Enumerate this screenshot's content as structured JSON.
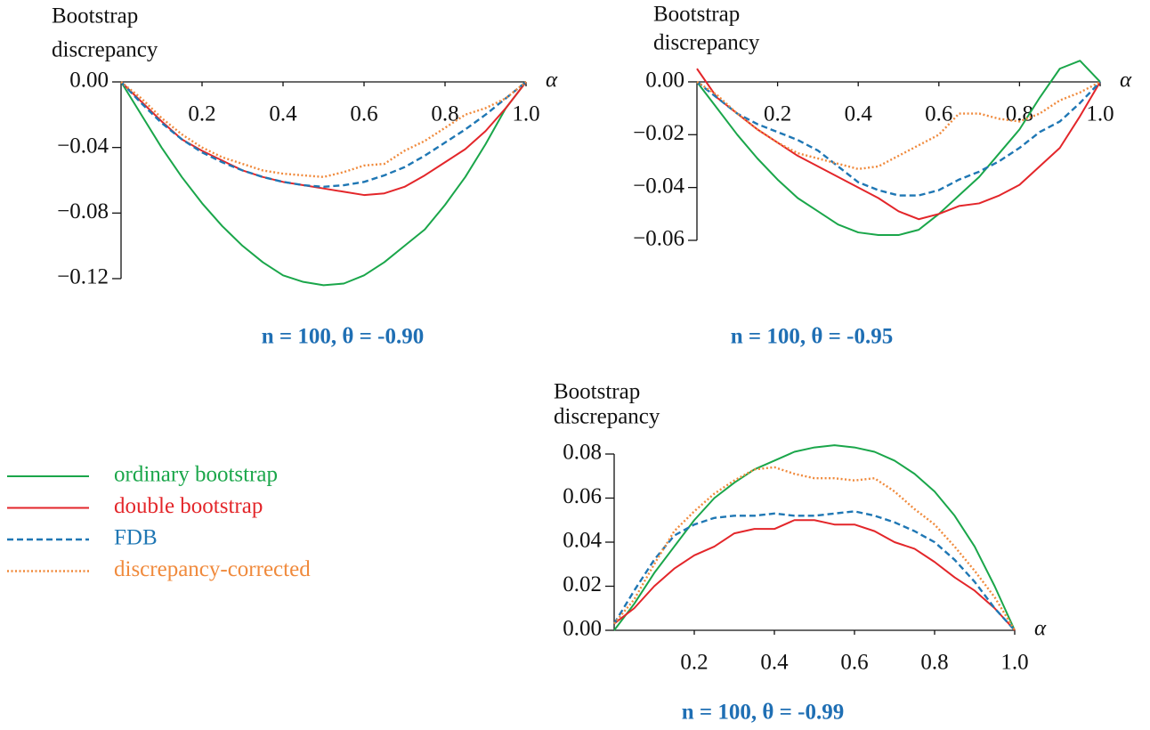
{
  "chart_data": [
    {
      "type": "line",
      "title": "n =  100, θ =  -0.90",
      "ylabel": [
        "Bootstrap",
        "discrepancy"
      ],
      "xlabel": "α",
      "x": [
        0,
        0.05,
        0.1,
        0.15,
        0.2,
        0.25,
        0.3,
        0.35,
        0.4,
        0.45,
        0.5,
        0.55,
        0.6,
        0.65,
        0.7,
        0.75,
        0.8,
        0.85,
        0.9,
        0.95,
        1
      ],
      "xlim": [
        0,
        1
      ],
      "ylim": [
        -0.13,
        0.005
      ],
      "xticks": [
        0.2,
        0.4,
        0.6,
        0.8,
        {
          "value": 1,
          "label": "1.0"
        }
      ],
      "yticks": [
        {
          "value": 0,
          "label": "0.00"
        },
        {
          "value": -0.04,
          "label": "−0.04"
        },
        {
          "value": -0.08,
          "label": "−0.08"
        },
        {
          "value": -0.12,
          "label": "−0.12"
        }
      ],
      "series": [
        {
          "name": "ordinary bootstrap",
          "color": "#1aa64a",
          "dash": "solid",
          "values": [
            0,
            -0.02,
            -0.04,
            -0.058,
            -0.074,
            -0.088,
            -0.1,
            -0.11,
            -0.118,
            -0.122,
            -0.124,
            -0.123,
            -0.118,
            -0.11,
            -0.1,
            -0.09,
            -0.075,
            -0.058,
            -0.038,
            -0.016,
            0
          ]
        },
        {
          "name": "double bootstrap",
          "color": "#e3262a",
          "dash": "solid",
          "values": [
            0,
            -0.012,
            -0.024,
            -0.035,
            -0.042,
            -0.048,
            -0.054,
            -0.058,
            -0.061,
            -0.063,
            -0.065,
            -0.067,
            -0.069,
            -0.068,
            -0.064,
            -0.057,
            -0.049,
            -0.041,
            -0.03,
            -0.016,
            0
          ]
        },
        {
          "name": "FDB",
          "color": "#1f77b4",
          "dash": "dashed",
          "values": [
            0,
            -0.013,
            -0.025,
            -0.035,
            -0.043,
            -0.049,
            -0.054,
            -0.058,
            -0.061,
            -0.063,
            -0.064,
            -0.063,
            -0.061,
            -0.057,
            -0.052,
            -0.045,
            -0.037,
            -0.029,
            -0.02,
            -0.01,
            0
          ]
        },
        {
          "name": "discrepancy-corrected",
          "color": "#f08a3c",
          "dash": "dotted",
          "values": [
            0,
            -0.01,
            -0.022,
            -0.032,
            -0.04,
            -0.046,
            -0.05,
            -0.054,
            -0.056,
            -0.057,
            -0.058,
            -0.055,
            -0.051,
            -0.05,
            -0.042,
            -0.036,
            -0.028,
            -0.02,
            -0.016,
            -0.01,
            0
          ]
        }
      ]
    },
    {
      "type": "line",
      "title": "n =  100, θ =  -0.95",
      "ylabel": [
        "Bootstrap",
        "discrepancy"
      ],
      "xlabel": "α",
      "x": [
        0,
        0.05,
        0.1,
        0.15,
        0.2,
        0.25,
        0.3,
        0.35,
        0.4,
        0.45,
        0.5,
        0.55,
        0.6,
        0.65,
        0.7,
        0.75,
        0.8,
        0.85,
        0.9,
        0.95,
        1
      ],
      "xlim": [
        0,
        1
      ],
      "ylim": [
        -0.062,
        0.01
      ],
      "xticks": [
        0.2,
        0.4,
        0.6,
        0.8,
        {
          "value": 1,
          "label": "1.0"
        }
      ],
      "yticks": [
        {
          "value": 0,
          "label": "0.00"
        },
        {
          "value": -0.02,
          "label": "−0.02"
        },
        {
          "value": -0.04,
          "label": "−0.04"
        },
        {
          "value": -0.06,
          "label": "−0.06"
        }
      ],
      "series": [
        {
          "color": "#1aa64a",
          "dash": "solid",
          "values": [
            0,
            -0.01,
            -0.02,
            -0.029,
            -0.037,
            -0.044,
            -0.049,
            -0.054,
            -0.057,
            -0.058,
            -0.058,
            -0.056,
            -0.05,
            -0.043,
            -0.036,
            -0.027,
            -0.018,
            -0.006,
            0.005,
            0.008,
            0
          ]
        },
        {
          "color": "#e3262a",
          "dash": "solid",
          "values": [
            0.005,
            -0.006,
            -0.012,
            -0.018,
            -0.023,
            -0.028,
            -0.032,
            -0.036,
            -0.04,
            -0.044,
            -0.049,
            -0.052,
            -0.05,
            -0.047,
            -0.046,
            -0.043,
            -0.039,
            -0.032,
            -0.025,
            -0.013,
            0
          ]
        },
        {
          "color": "#1f77b4",
          "dash": "dashed",
          "values": [
            0,
            -0.006,
            -0.012,
            -0.016,
            -0.019,
            -0.022,
            -0.026,
            -0.032,
            -0.038,
            -0.041,
            -0.043,
            -0.043,
            -0.041,
            -0.037,
            -0.034,
            -0.03,
            -0.025,
            -0.019,
            -0.015,
            -0.008,
            0
          ]
        },
        {
          "color": "#f08a3c",
          "dash": "dotted",
          "values": [
            0,
            -0.005,
            -0.012,
            -0.018,
            -0.023,
            -0.027,
            -0.029,
            -0.031,
            -0.033,
            -0.032,
            -0.028,
            -0.024,
            -0.02,
            -0.012,
            -0.012,
            -0.014,
            -0.015,
            -0.012,
            -0.007,
            -0.004,
            0
          ]
        }
      ]
    },
    {
      "type": "line",
      "title": "n =  100, θ =  -0.99",
      "ylabel": [
        "Bootstrap",
        "discrepancy"
      ],
      "xlabel": "α",
      "x": [
        0,
        0.05,
        0.1,
        0.15,
        0.2,
        0.25,
        0.3,
        0.35,
        0.4,
        0.45,
        0.5,
        0.55,
        0.6,
        0.65,
        0.7,
        0.75,
        0.8,
        0.85,
        0.9,
        0.95,
        1
      ],
      "xlim": [
        0,
        1
      ],
      "ylim": [
        0,
        0.088
      ],
      "xticks": [
        0.2,
        0.4,
        0.6,
        0.8,
        {
          "value": 1,
          "label": "1.0"
        }
      ],
      "yticks": [
        {
          "value": 0,
          "label": "0.00"
        },
        {
          "value": 0.02,
          "label": "0.02"
        },
        {
          "value": 0.04,
          "label": "0.04"
        },
        {
          "value": 0.06,
          "label": "0.06"
        },
        {
          "value": 0.08,
          "label": "0.08"
        }
      ],
      "series": [
        {
          "color": "#1aa64a",
          "dash": "solid",
          "values": [
            0,
            0.012,
            0.026,
            0.038,
            0.05,
            0.06,
            0.067,
            0.073,
            0.077,
            0.081,
            0.083,
            0.084,
            0.083,
            0.081,
            0.077,
            0.071,
            0.063,
            0.052,
            0.038,
            0.02,
            0
          ]
        },
        {
          "color": "#e3262a",
          "dash": "solid",
          "values": [
            0.003,
            0.01,
            0.02,
            0.028,
            0.034,
            0.038,
            0.044,
            0.046,
            0.046,
            0.05,
            0.05,
            0.048,
            0.048,
            0.045,
            0.04,
            0.037,
            0.031,
            0.024,
            0.018,
            0.01,
            0
          ]
        },
        {
          "color": "#1f77b4",
          "dash": "dashed",
          "values": [
            0.003,
            0.018,
            0.032,
            0.043,
            0.048,
            0.051,
            0.052,
            0.052,
            0.053,
            0.052,
            0.052,
            0.053,
            0.054,
            0.052,
            0.049,
            0.045,
            0.04,
            0.032,
            0.022,
            0.01,
            0
          ]
        },
        {
          "color": "#f08a3c",
          "dash": "dotted",
          "values": [
            0.003,
            0.014,
            0.03,
            0.045,
            0.054,
            0.062,
            0.068,
            0.073,
            0.074,
            0.071,
            0.069,
            0.069,
            0.068,
            0.069,
            0.063,
            0.055,
            0.048,
            0.038,
            0.027,
            0.015,
            0
          ]
        }
      ]
    }
  ]
}
